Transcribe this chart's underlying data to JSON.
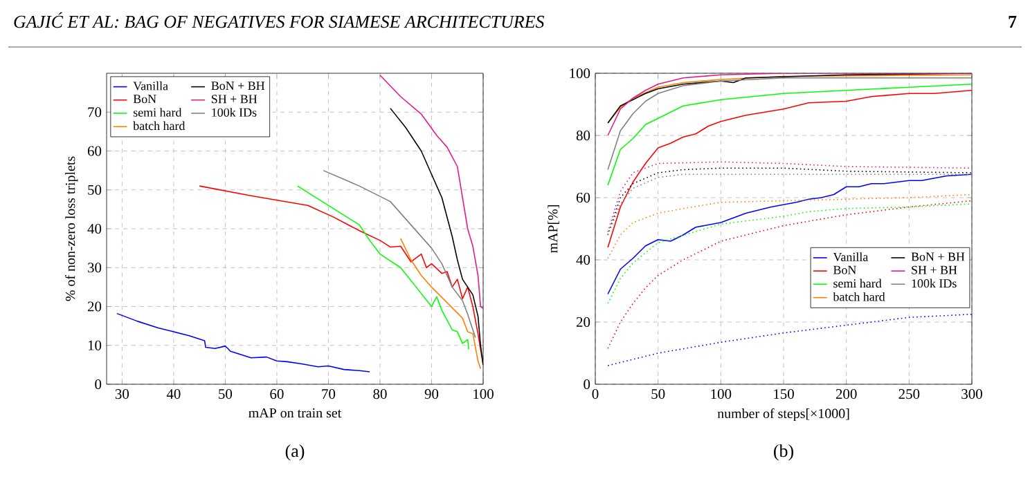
{
  "chart_data": [
    {
      "type": "line",
      "xlabel": "mAP on train set",
      "ylabel": "% of non-zero loss triplets",
      "annotations": [
        "GAJIĆ ET AL: BAG OF NEGATIVES FOR SIAMESE ARCHITECTURES",
        "7",
        "(a)"
      ],
      "xlim": [
        27,
        100
      ],
      "ylim": [
        0,
        80
      ],
      "xticks": [
        30,
        40,
        50,
        60,
        70,
        80,
        90,
        100
      ],
      "yticks": [
        0,
        10,
        20,
        30,
        40,
        50,
        60,
        70
      ],
      "grid": true,
      "legend": "top left",
      "marker": "none",
      "series": [
        {
          "name": "Vanilla",
          "color": "#0000ff",
          "line_style": "solid",
          "x": [
            29,
            33,
            37,
            40,
            43,
            46,
            46.2,
            48,
            50,
            50.5,
            51,
            55,
            58,
            60,
            62,
            65,
            68,
            70,
            73,
            76,
            78
          ],
          "values": [
            18.2,
            16.2,
            14.5,
            13.5,
            12.5,
            11.2,
            9.5,
            9.2,
            9.8,
            9.2,
            8.5,
            6.8,
            7,
            6,
            5.8,
            5.2,
            4.5,
            4.7,
            3.8,
            3.5,
            3.2
          ]
        },
        {
          "name": "BoN",
          "color": "#ff0000",
          "line_style": "solid",
          "x": [
            45,
            55,
            66,
            71,
            76,
            80,
            82,
            84,
            86,
            88,
            89,
            90,
            92,
            93,
            94,
            95,
            96,
            97,
            98,
            99,
            100
          ],
          "values": [
            51,
            48.5,
            46,
            43,
            39.5,
            37,
            35.3,
            35.5,
            31.5,
            33.5,
            30,
            31,
            28.5,
            29,
            25,
            27,
            22,
            25,
            20,
            13,
            5
          ]
        },
        {
          "name": "semi hard",
          "color": "#00ff00",
          "line_style": "solid",
          "x": [
            64,
            70,
            76,
            78,
            80,
            84,
            87,
            90,
            91,
            92,
            94,
            95,
            96,
            97,
            97.2
          ],
          "values": [
            51,
            46,
            41,
            37,
            33.5,
            30,
            25,
            20,
            22.5,
            19,
            14,
            13.5,
            10.5,
            11.5,
            9
          ]
        },
        {
          "name": "batch hard",
          "color": "#ff8000",
          "line_style": "solid",
          "x": [
            84,
            86,
            88,
            90,
            93,
            96,
            97,
            98,
            99,
            99.5
          ],
          "values": [
            37.5,
            32,
            28,
            25,
            21,
            17,
            13.5,
            13,
            6,
            4
          ]
        },
        {
          "name": "BoN + BH",
          "color": "#000000",
          "line_style": "solid",
          "x": [
            82,
            85,
            88,
            90,
            92,
            94,
            95,
            96,
            98,
            99,
            99.5,
            100
          ],
          "values": [
            71,
            66,
            60,
            54,
            48,
            38,
            32,
            27,
            23,
            17.5,
            10,
            5
          ]
        },
        {
          "name": "SH + BH",
          "color": "#e6198c",
          "line_style": "solid",
          "x": [
            80,
            84,
            88,
            91,
            93,
            95,
            96,
            97,
            98,
            99,
            99.5,
            100
          ],
          "values": [
            79.5,
            74,
            69.5,
            64,
            61,
            56,
            48,
            40,
            35.5,
            28,
            20,
            19.5
          ]
        },
        {
          "name": "100k IDs",
          "color": "#808080",
          "line_style": "solid",
          "x": [
            69,
            76,
            82,
            86,
            90,
            92,
            94,
            96,
            97,
            98,
            98.5
          ],
          "values": [
            55,
            51,
            47,
            41,
            35,
            31,
            25,
            21.5,
            18,
            14,
            12
          ]
        }
      ]
    },
    {
      "type": "line",
      "xlabel": "number of steps[×1000]",
      "ylabel": "mAP[%]",
      "annotations": [
        "(b)"
      ],
      "xlim": [
        0,
        300
      ],
      "ylim": [
        0,
        100
      ],
      "xticks": [
        0,
        50,
        100,
        150,
        200,
        250,
        300
      ],
      "yticks": [
        0,
        20,
        40,
        60,
        80,
        100
      ],
      "grid": true,
      "legend": "bottom right",
      "marker": "none",
      "series": [
        {
          "name": "Vanilla",
          "color": "#0000ff",
          "line_style": "solid",
          "x": [
            10,
            20,
            30,
            40,
            50,
            60,
            70,
            80,
            100,
            120,
            140,
            160,
            170,
            180,
            190,
            200,
            210,
            220,
            230,
            250,
            260,
            280,
            300
          ],
          "values": [
            29,
            37,
            40.5,
            44.5,
            46.5,
            46,
            48,
            50.5,
            52,
            55,
            57,
            58.5,
            59.5,
            60,
            61,
            63.5,
            63.5,
            64.5,
            64.5,
            65.5,
            65.5,
            67,
            67.5
          ]
        },
        {
          "name": "BoN",
          "color": "#ff0000",
          "line_style": "solid",
          "x": [
            10,
            20,
            30,
            40,
            50,
            60,
            70,
            80,
            90,
            100,
            120,
            150,
            170,
            200,
            220,
            250,
            270,
            300
          ],
          "values": [
            44,
            57,
            65,
            71,
            76,
            77.5,
            79.5,
            80.5,
            83,
            84.5,
            86.5,
            88.5,
            90.5,
            91,
            92.5,
            93.5,
            93.5,
            94.5
          ]
        },
        {
          "name": "semi hard",
          "color": "#00ff00",
          "line_style": "solid",
          "x": [
            10,
            20,
            30,
            40,
            50,
            70,
            100,
            150,
            200,
            250,
            300
          ],
          "values": [
            64,
            75.5,
            79,
            83.5,
            85.5,
            89.5,
            91.5,
            93.5,
            94.5,
            95.5,
            96.5
          ]
        },
        {
          "name": "batch hard",
          "color": "#ff8000",
          "line_style": "solid",
          "x": [
            10,
            20,
            30,
            50,
            70,
            100,
            150,
            300
          ],
          "values": [
            84,
            89,
            92,
            95.5,
            97,
            98,
            99,
            99.5
          ]
        },
        {
          "name": "BoN + BH",
          "color": "#000000",
          "line_style": "solid",
          "x": [
            10,
            20,
            30,
            40,
            50,
            70,
            100,
            110,
            120,
            200,
            300
          ],
          "values": [
            84,
            89.5,
            91.5,
            93.5,
            95,
            96.5,
            97.5,
            97,
            98.5,
            99.5,
            100
          ]
        },
        {
          "name": "SH + BH",
          "color": "#e6198c",
          "line_style": "solid",
          "x": [
            10,
            20,
            30,
            40,
            50,
            70,
            100,
            150,
            300
          ],
          "values": [
            80,
            88.5,
            92,
            94.5,
            96.5,
            98.5,
            99.5,
            100,
            100
          ]
        },
        {
          "name": "100k IDs",
          "color": "#808080",
          "line_style": "solid",
          "x": [
            10,
            20,
            30,
            40,
            50,
            70,
            100,
            150,
            300
          ],
          "values": [
            69,
            81.5,
            87,
            91,
            93.5,
            96,
            97.5,
            98.5,
            98.5
          ]
        },
        {
          "color": "#0000ff",
          "line_style": "dotted",
          "x": [
            10,
            50,
            100,
            150,
            200,
            250,
            300
          ],
          "values": [
            6,
            10,
            13.5,
            16.5,
            19,
            21.5,
            22.5
          ]
        },
        {
          "color": "#ff0000",
          "line_style": "dotted",
          "x": [
            10,
            20,
            30,
            40,
            50,
            70,
            100,
            150,
            200,
            250,
            300
          ],
          "values": [
            11.5,
            20,
            26,
            31,
            35,
            40,
            46,
            51,
            54.5,
            57,
            59
          ]
        },
        {
          "color": "#00ff00",
          "line_style": "dotted",
          "x": [
            10,
            20,
            30,
            50,
            100,
            150,
            170,
            200,
            250,
            300
          ],
          "values": [
            26,
            34,
            39,
            45.5,
            51.5,
            54,
            55.5,
            56.5,
            57,
            58
          ]
        },
        {
          "color": "#ff8000",
          "line_style": "dotted",
          "x": [
            10,
            20,
            30,
            50,
            70,
            100,
            150,
            200,
            250,
            300
          ],
          "values": [
            40.5,
            48,
            52,
            55,
            56.5,
            58.5,
            59,
            59.5,
            60,
            61
          ]
        },
        {
          "color": "#000000",
          "line_style": "dotted",
          "x": [
            10,
            20,
            30,
            50,
            70,
            100,
            150,
            200,
            300
          ],
          "values": [
            48,
            60,
            64.5,
            68,
            69,
            69.5,
            69.5,
            68.5,
            68
          ]
        },
        {
          "color": "#e6198c",
          "line_style": "dotted",
          "x": [
            10,
            20,
            30,
            50,
            100,
            150,
            200,
            300
          ],
          "values": [
            49,
            62,
            68,
            71,
            71.5,
            71,
            70,
            69.5
          ]
        },
        {
          "color": "#808080",
          "line_style": "dotted",
          "x": [
            10,
            20,
            30,
            50,
            70,
            100,
            200,
            300
          ],
          "values": [
            48,
            58,
            63,
            66.5,
            67.5,
            67.5,
            67.5,
            67.5
          ]
        }
      ]
    }
  ]
}
